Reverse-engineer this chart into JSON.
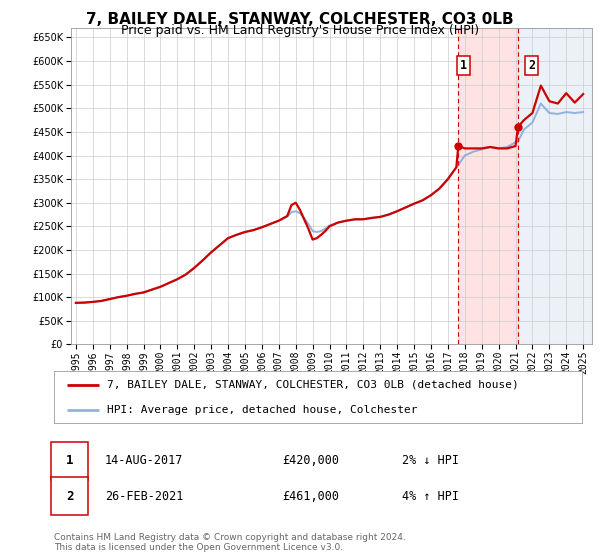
{
  "title": "7, BAILEY DALE, STANWAY, COLCHESTER, CO3 0LB",
  "subtitle": "Price paid vs. HM Land Registry's House Price Index (HPI)",
  "ylim": [
    0,
    670000
  ],
  "yticks": [
    0,
    50000,
    100000,
    150000,
    200000,
    250000,
    300000,
    350000,
    400000,
    450000,
    500000,
    550000,
    600000,
    650000
  ],
  "xlim_start": 1994.7,
  "xlim_end": 2025.5,
  "xticks": [
    1995,
    1996,
    1997,
    1998,
    1999,
    2000,
    2001,
    2002,
    2003,
    2004,
    2005,
    2006,
    2007,
    2008,
    2009,
    2010,
    2011,
    2012,
    2013,
    2014,
    2015,
    2016,
    2017,
    2018,
    2019,
    2020,
    2021,
    2022,
    2023,
    2024,
    2025
  ],
  "line1_color": "#cc0000",
  "line2_color": "#88aadd",
  "line1_label": "7, BAILEY DALE, STANWAY, COLCHESTER, CO3 0LB (detached house)",
  "line2_label": "HPI: Average price, detached house, Colchester",
  "sale1_x": 2017.617,
  "sale1_y": 420000,
  "sale2_x": 2021.15,
  "sale2_y": 461000,
  "vline1_x": 2017.617,
  "vline2_x": 2021.15,
  "vline_color": "#cc0000",
  "shade1_color": "#ffd0d0",
  "shade2_color": "#d8e4f0",
  "annotation1_date": "14-AUG-2017",
  "annotation1_price": "£420,000",
  "annotation1_hpi": "2% ↓ HPI",
  "annotation2_date": "26-FEB-2021",
  "annotation2_price": "£461,000",
  "annotation2_hpi": "4% ↑ HPI",
  "footer1": "Contains HM Land Registry data © Crown copyright and database right 2024.",
  "footer2": "This data is licensed under the Open Government Licence v3.0.",
  "bg_color": "#ffffff",
  "grid_color": "#cccccc",
  "title_fontsize": 11,
  "subtitle_fontsize": 9,
  "tick_fontsize": 7,
  "legend_fontsize": 8,
  "annotation_fontsize": 8.5,
  "footer_fontsize": 6.5
}
